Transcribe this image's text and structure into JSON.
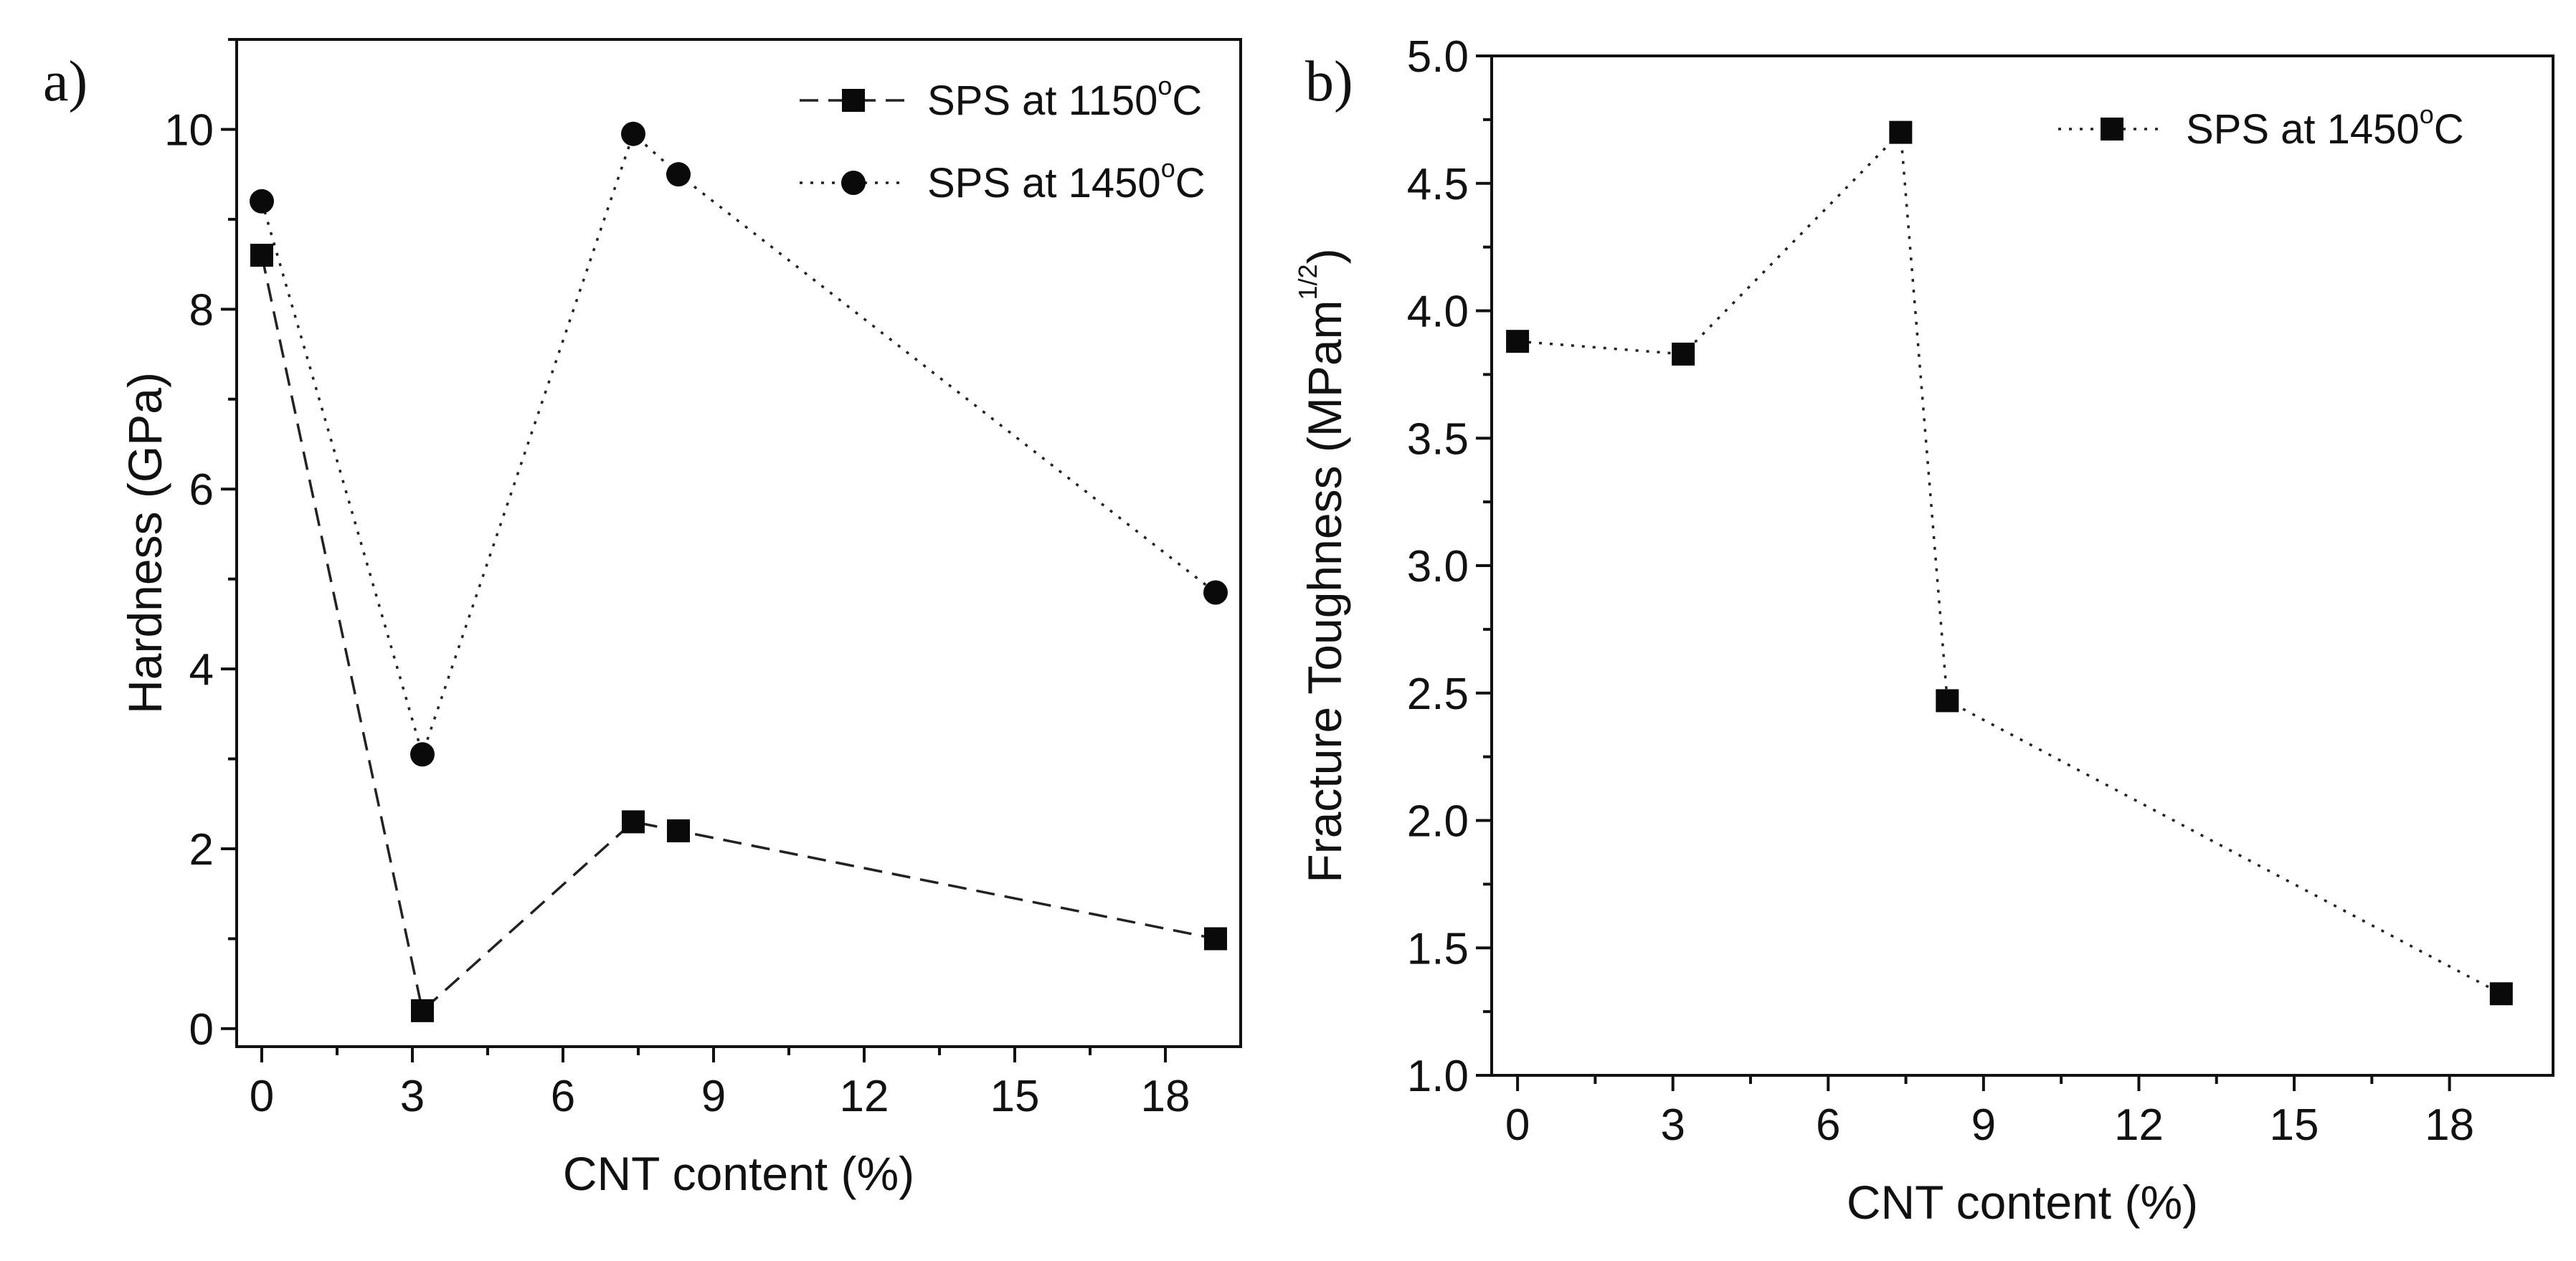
{
  "chart_data": [
    {
      "type": "line",
      "panel_label": "a)",
      "xlabel": "CNT content (%)",
      "ylabel": "Hardness (GPa)",
      "xlim": [
        -0.5,
        19.5
      ],
      "ylim": [
        -0.2,
        11
      ],
      "xticks": [
        0,
        3,
        6,
        9,
        12,
        15,
        18
      ],
      "yticks": [
        0,
        2,
        4,
        6,
        8,
        10
      ],
      "x_minor_step": 1.5,
      "y_minor_step": 1,
      "legend_position": "top-right",
      "series": [
        {
          "name": "SPS at 1150°C",
          "name_prefix": "SPS at 1150",
          "name_sup": "o",
          "name_suffix": "C",
          "marker": "square",
          "line": "dash",
          "x": [
            0,
            3.2,
            7.4,
            8.3,
            19
          ],
          "y": [
            8.6,
            0.2,
            2.3,
            2.2,
            1.0
          ]
        },
        {
          "name": "SPS at 1450°C",
          "name_prefix": "SPS at 1450",
          "name_sup": "o",
          "name_suffix": "C",
          "marker": "circle",
          "line": "dot",
          "x": [
            0,
            3.2,
            7.4,
            8.3,
            19
          ],
          "y": [
            9.2,
            3.05,
            9.95,
            9.5,
            4.85
          ]
        }
      ]
    },
    {
      "type": "line",
      "panel_label": "b)",
      "xlabel": "CNT content (%)",
      "ylabel": "Fracture Toughness (MPam1/2)",
      "ylabel_prefix": "Fracture Toughness (MPam",
      "ylabel_sup": "1/2",
      "ylabel_suffix": ")",
      "xlim": [
        -0.5,
        20
      ],
      "ylim": [
        1.0,
        5.0
      ],
      "xticks": [
        0,
        3,
        6,
        9,
        12,
        15,
        18
      ],
      "yticks": [
        1.0,
        1.5,
        2.0,
        2.5,
        3.0,
        3.5,
        4.0,
        4.5,
        5.0
      ],
      "ytick_labels": [
        "1.0",
        "1.5",
        "2.0",
        "2.5",
        "3.0",
        "3.5",
        "4.0",
        "4.5",
        "5.0"
      ],
      "x_minor_step": 1.5,
      "y_minor_step": 0.25,
      "legend_position": "top-right",
      "series": [
        {
          "name": "SPS at 1450°C",
          "name_prefix": "SPS at 1450",
          "name_sup": "o",
          "name_suffix": "C",
          "marker": "square",
          "line": "dot",
          "x": [
            0,
            3.2,
            7.4,
            8.3,
            19
          ],
          "y": [
            3.88,
            3.83,
            4.7,
            2.47,
            1.32
          ]
        }
      ]
    }
  ]
}
